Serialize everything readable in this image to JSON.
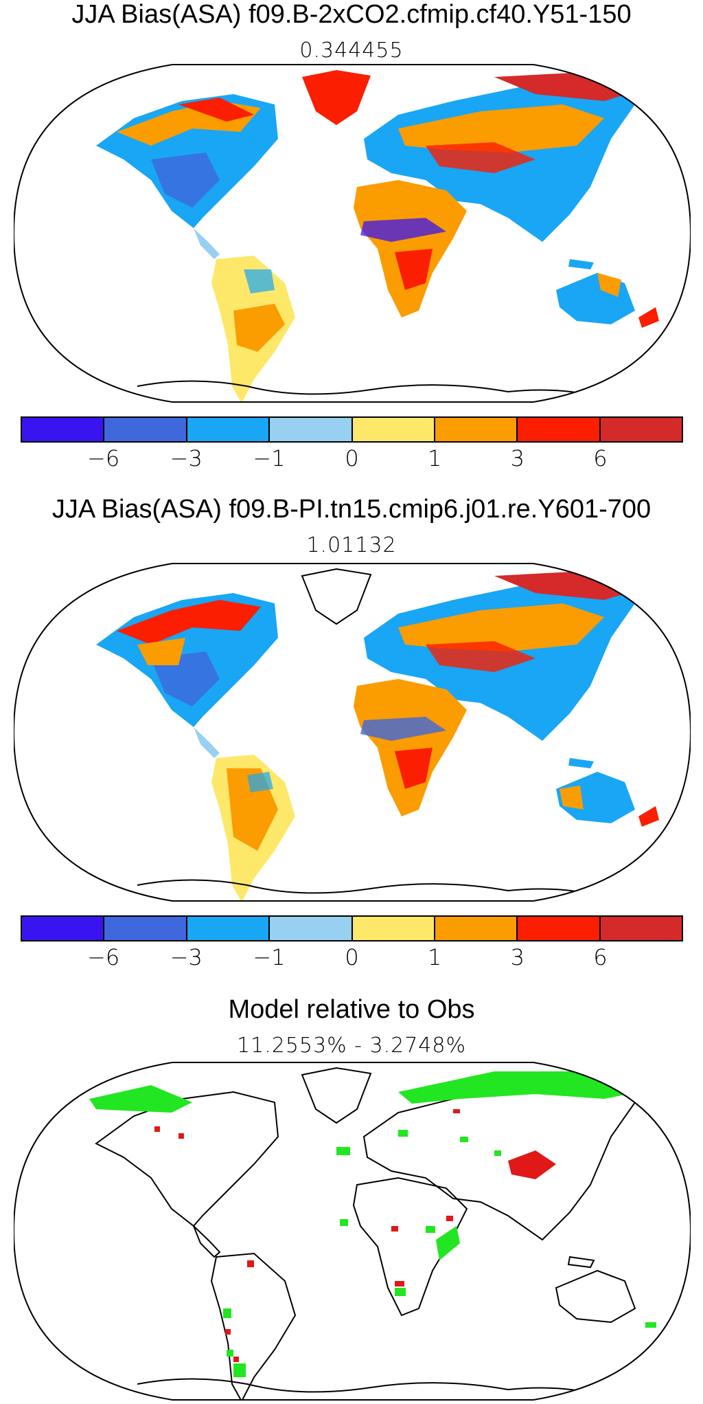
{
  "panels": [
    {
      "title": "JJA Bias(ASA) f09.B-2xCO2.cfmip.cf40.Y51-150",
      "subtitle": "0.344455"
    },
    {
      "title": "JJA Bias(ASA) f09.B-PI.tn15.cmip6.j01.re.Y601-700",
      "subtitle": "1.01132"
    },
    {
      "title": "Model relative to Obs",
      "subtitle": "11.2553% - 3.2748%"
    }
  ],
  "colorbar": {
    "colors": [
      "#3a14f0",
      "#3f68dc",
      "#18a6f5",
      "#97d0f0",
      "#fde86a",
      "#fb9c00",
      "#fb1e00",
      "#d42a2a"
    ],
    "tick_labels": [
      "−6",
      "−3",
      "−1",
      "0",
      "1",
      "3",
      "6"
    ]
  },
  "comparison_colors": {
    "better": "#22e622",
    "worse": "#e01818"
  }
}
